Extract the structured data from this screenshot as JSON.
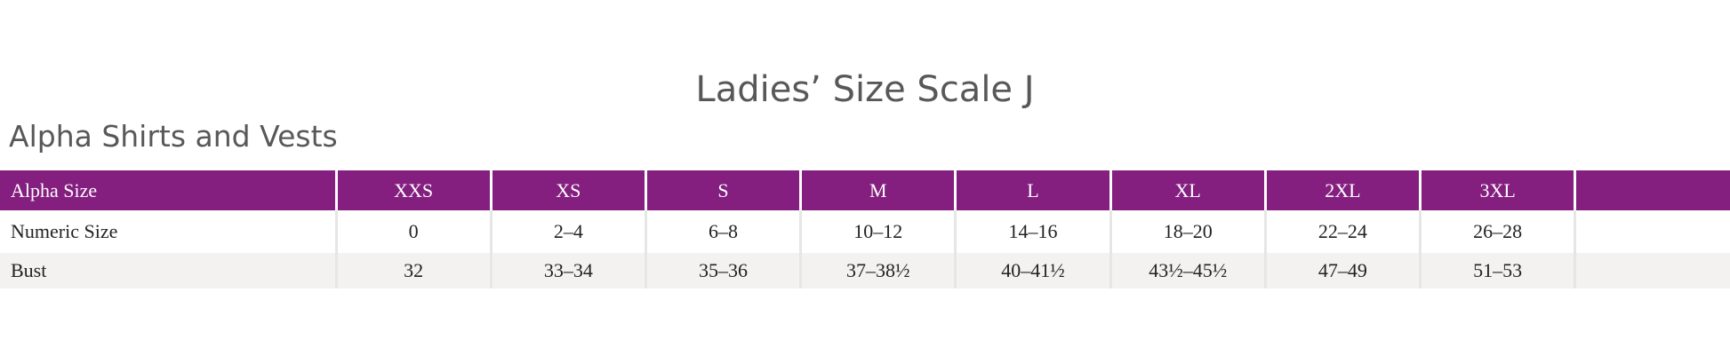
{
  "title": "Ladies’ Size Scale J",
  "subtitle": "Alpha Shirts and Vests",
  "accent_color": "#841e7f",
  "table": {
    "header": [
      "Alpha Size",
      "XXS",
      "XS",
      "S",
      "M",
      "L",
      "XL",
      "2XL",
      "3XL",
      ""
    ],
    "rows": [
      [
        "Numeric Size",
        "0",
        "2–4",
        "6–8",
        "10–12",
        "14–16",
        "18–20",
        "22–24",
        "26–28",
        ""
      ],
      [
        "Bust",
        "32",
        "33–34",
        "35–36",
        "37–38½",
        "40–41½",
        "43½–45½",
        "47–49",
        "51–53",
        ""
      ]
    ]
  }
}
